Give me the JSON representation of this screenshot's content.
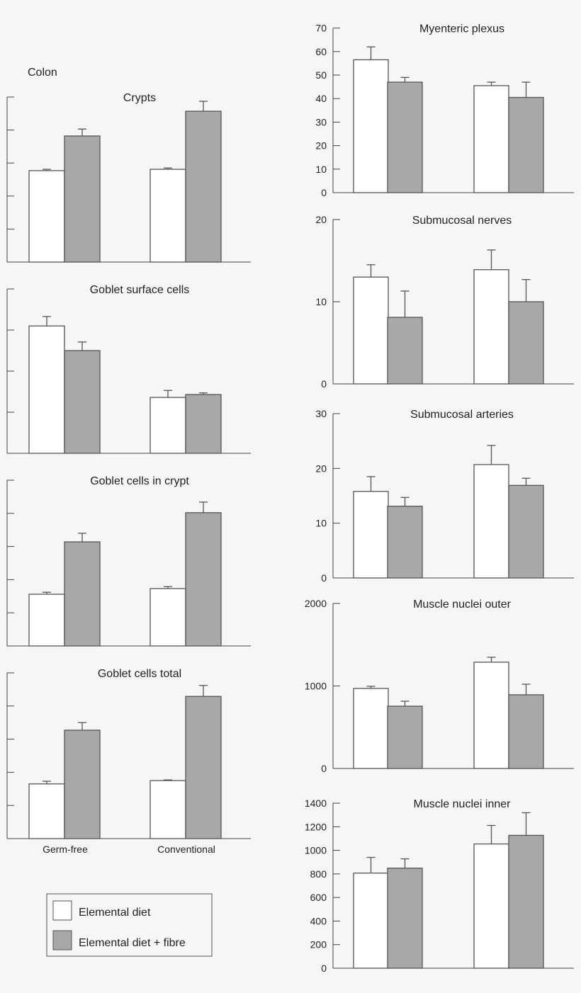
{
  "chart_data": {
    "type": "bar",
    "section_label": "Colon",
    "categories": [
      "Germ-free",
      "Conventional"
    ],
    "legend": {
      "position": "bottom-left",
      "entries": [
        {
          "name": "Elemental diet",
          "color": "#ffffff"
        },
        {
          "name": "Elemental diet + fibre",
          "color": "#a8a8a8"
        }
      ]
    },
    "colors": {
      "elemental": "#ffffff",
      "fibre": "#a8a8a8",
      "stroke": "#555555"
    },
    "panels": [
      {
        "title": "Crypts",
        "column": "left",
        "ylim": [
          0,
          5
        ],
        "yticks": [
          0,
          1,
          2,
          3,
          4,
          5
        ],
        "ytick_labels_shown": false,
        "series": [
          {
            "name": "Elemental diet",
            "values": [
              2.77,
              2.81
            ],
            "errors": [
              0.04,
              0.04
            ]
          },
          {
            "name": "Elemental diet + fibre",
            "values": [
              3.82,
              4.57
            ],
            "errors": [
              0.21,
              0.3
            ]
          }
        ]
      },
      {
        "title": "Goblet surface cells",
        "column": "left",
        "ylim": [
          0,
          4
        ],
        "yticks": [
          0,
          1,
          2,
          3,
          4
        ],
        "ytick_labels_shown": false,
        "series": [
          {
            "name": "Elemental diet",
            "values": [
              3.1,
              1.36
            ],
            "errors": [
              0.23,
              0.17
            ]
          },
          {
            "name": "Elemental diet + fibre",
            "values": [
              2.5,
              1.43
            ],
            "errors": [
              0.21,
              0.04
            ]
          }
        ]
      },
      {
        "title": "Goblet cells in crypt",
        "column": "left",
        "ylim": [
          0,
          5
        ],
        "yticks": [
          0,
          1,
          2,
          3,
          4,
          5
        ],
        "ytick_labels_shown": false,
        "series": [
          {
            "name": "Elemental diet",
            "values": [
              1.56,
              1.73
            ],
            "errors": [
              0.06,
              0.06
            ]
          },
          {
            "name": "Elemental diet + fibre",
            "values": [
              3.14,
              4.02
            ],
            "errors": [
              0.26,
              0.32
            ]
          }
        ]
      },
      {
        "title": "Goblet cells total",
        "column": "left",
        "ylim": [
          0,
          5
        ],
        "yticks": [
          0,
          1,
          2,
          3,
          4,
          5
        ],
        "ytick_labels_shown": false,
        "series": [
          {
            "name": "Elemental diet",
            "values": [
              1.65,
              1.75
            ],
            "errors": [
              0.08,
              0.02
            ]
          },
          {
            "name": "Elemental diet + fibre",
            "values": [
              3.27,
              4.29
            ],
            "errors": [
              0.23,
              0.33
            ]
          }
        ]
      },
      {
        "title": "Myenteric plexus",
        "column": "right",
        "ylim": [
          0,
          70
        ],
        "yticks": [
          0,
          10,
          20,
          30,
          40,
          50,
          60,
          70
        ],
        "ytick_labels_shown": true,
        "series": [
          {
            "name": "Elemental diet",
            "values": [
              56.5,
              45.5
            ],
            "errors": [
              5.5,
              1.5
            ]
          },
          {
            "name": "Elemental diet + fibre",
            "values": [
              47,
              40.5
            ],
            "errors": [
              2,
              6.5
            ]
          }
        ]
      },
      {
        "title": "Submucosal nerves",
        "column": "right",
        "ylim": [
          0,
          20
        ],
        "yticks": [
          0,
          10,
          20
        ],
        "ytick_labels_shown": true,
        "series": [
          {
            "name": "Elemental diet",
            "values": [
              13.0,
              13.9
            ],
            "errors": [
              1.5,
              2.4
            ]
          },
          {
            "name": "Elemental diet + fibre",
            "values": [
              8.1,
              10.0
            ],
            "errors": [
              3.2,
              2.7
            ]
          }
        ]
      },
      {
        "title": "Submucosal arteries",
        "column": "right",
        "ylim": [
          0,
          30
        ],
        "yticks": [
          0,
          10,
          20,
          30
        ],
        "ytick_labels_shown": true,
        "series": [
          {
            "name": "Elemental diet",
            "values": [
              15.8,
              20.7
            ],
            "errors": [
              2.7,
              3.5
            ]
          },
          {
            "name": "Elemental diet + fibre",
            "values": [
              13.1,
              16.9
            ],
            "errors": [
              1.6,
              1.3
            ]
          }
        ]
      },
      {
        "title": "Muscle nuclei outer",
        "column": "right",
        "ylim": [
          0,
          2000
        ],
        "yticks": [
          0,
          1000,
          2000
        ],
        "ytick_labels_shown": true,
        "series": [
          {
            "name": "Elemental diet",
            "values": [
              970,
              1288
            ],
            "errors": [
              26,
              60
            ]
          },
          {
            "name": "Elemental diet + fibre",
            "values": [
              755,
              893
            ],
            "errors": [
              60,
              128
            ]
          }
        ]
      },
      {
        "title": "Muscle nuclei inner",
        "column": "right",
        "ylim": [
          0,
          1400
        ],
        "yticks": [
          0,
          200,
          400,
          600,
          800,
          1000,
          1200,
          1400
        ],
        "ytick_labels_shown": true,
        "series": [
          {
            "name": "Elemental diet",
            "values": [
              807,
              1054
            ],
            "errors": [
              133,
              157
            ]
          },
          {
            "name": "Elemental diet + fibre",
            "values": [
              849,
              1127
            ],
            "errors": [
              79,
              192
            ]
          }
        ]
      }
    ]
  }
}
